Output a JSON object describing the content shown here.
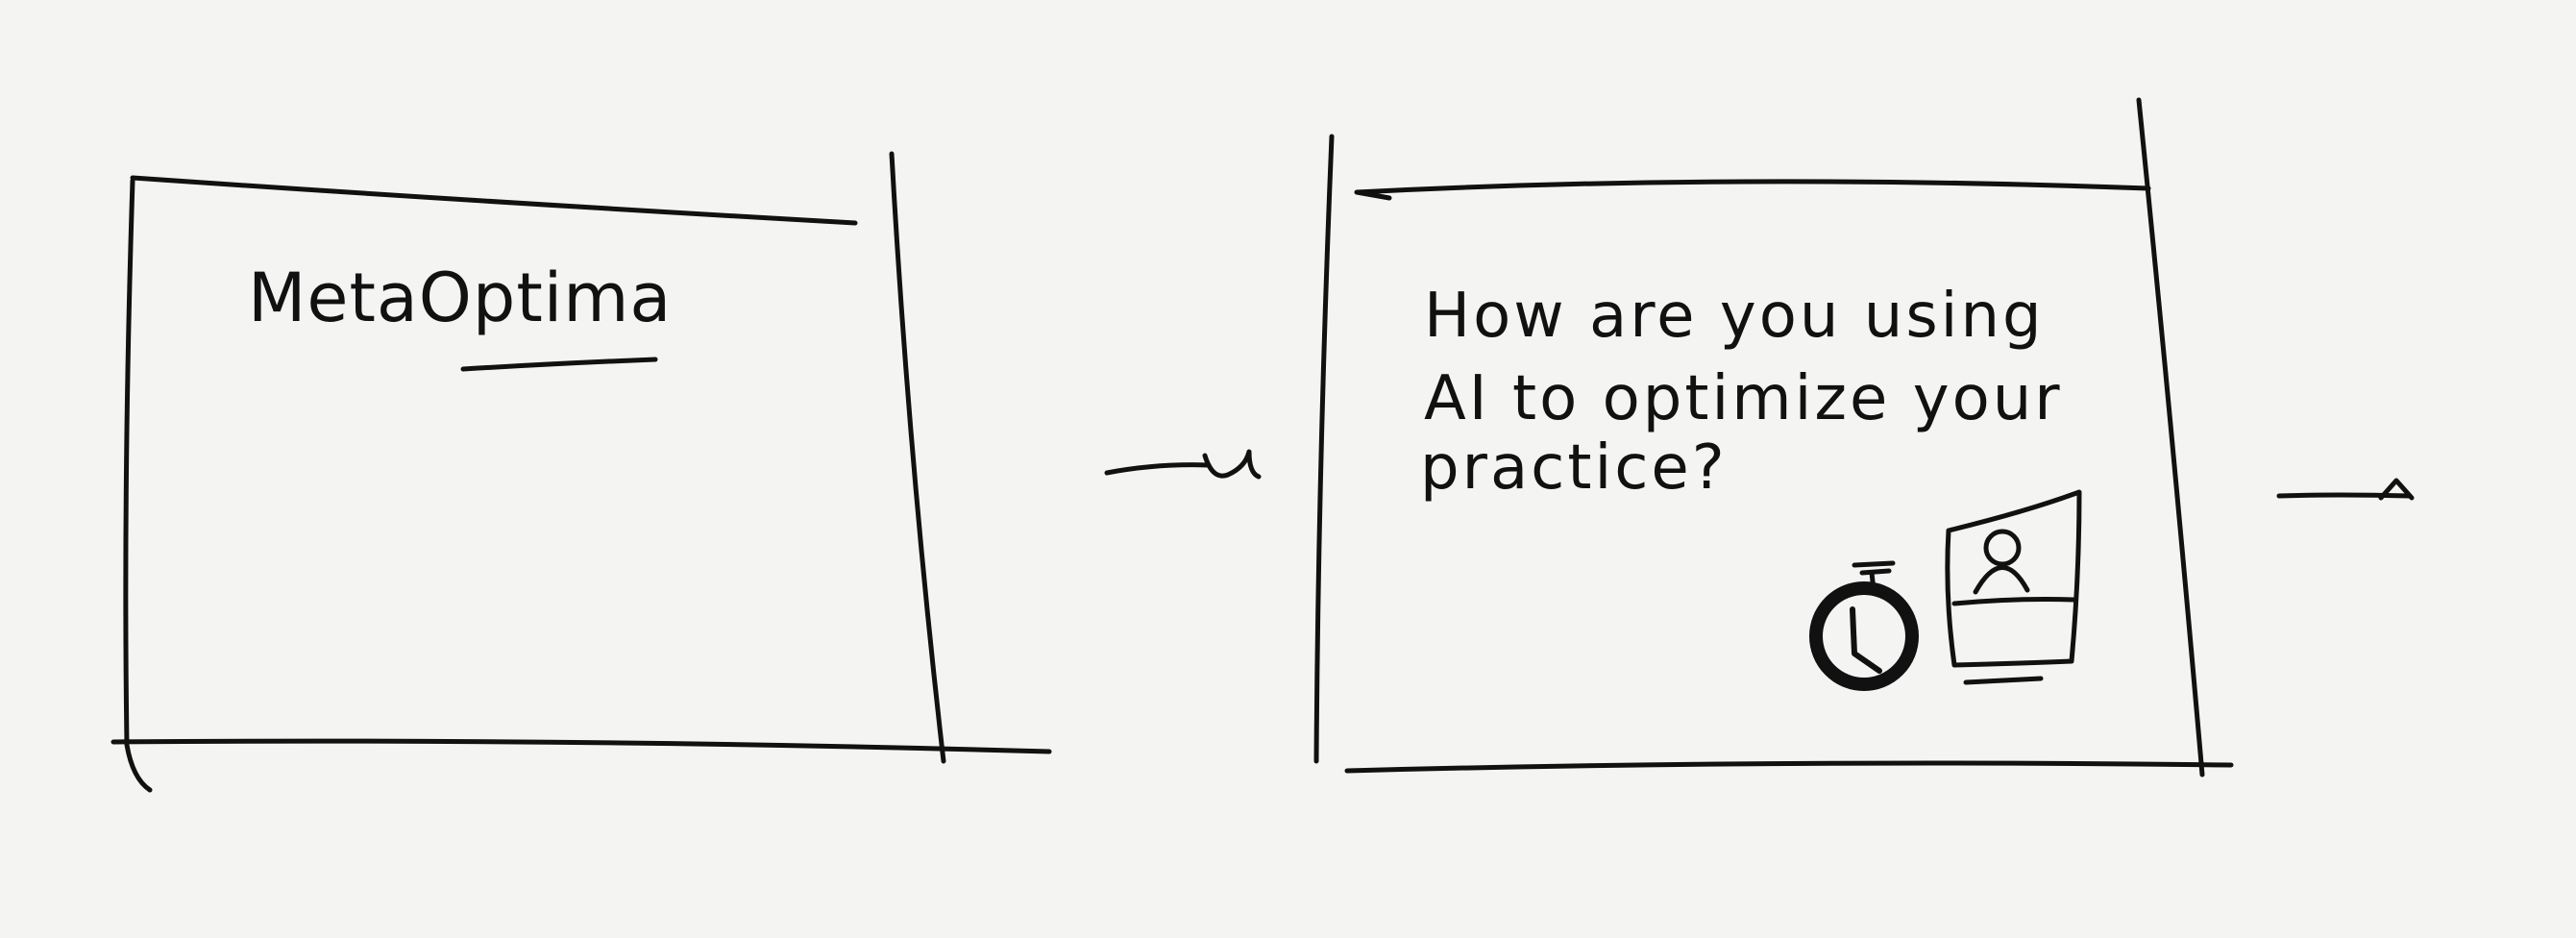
{
  "frames": [
    {
      "id": "frame-1",
      "title": "MetaOptima"
    },
    {
      "id": "frame-2",
      "question_lines": [
        "How are you using",
        "AI to optimize your",
        "practice?"
      ],
      "icons": [
        "stopwatch-icon",
        "person-card-icon"
      ]
    }
  ],
  "colors": {
    "paper": "#f4f4f3",
    "ink": "#111111"
  }
}
